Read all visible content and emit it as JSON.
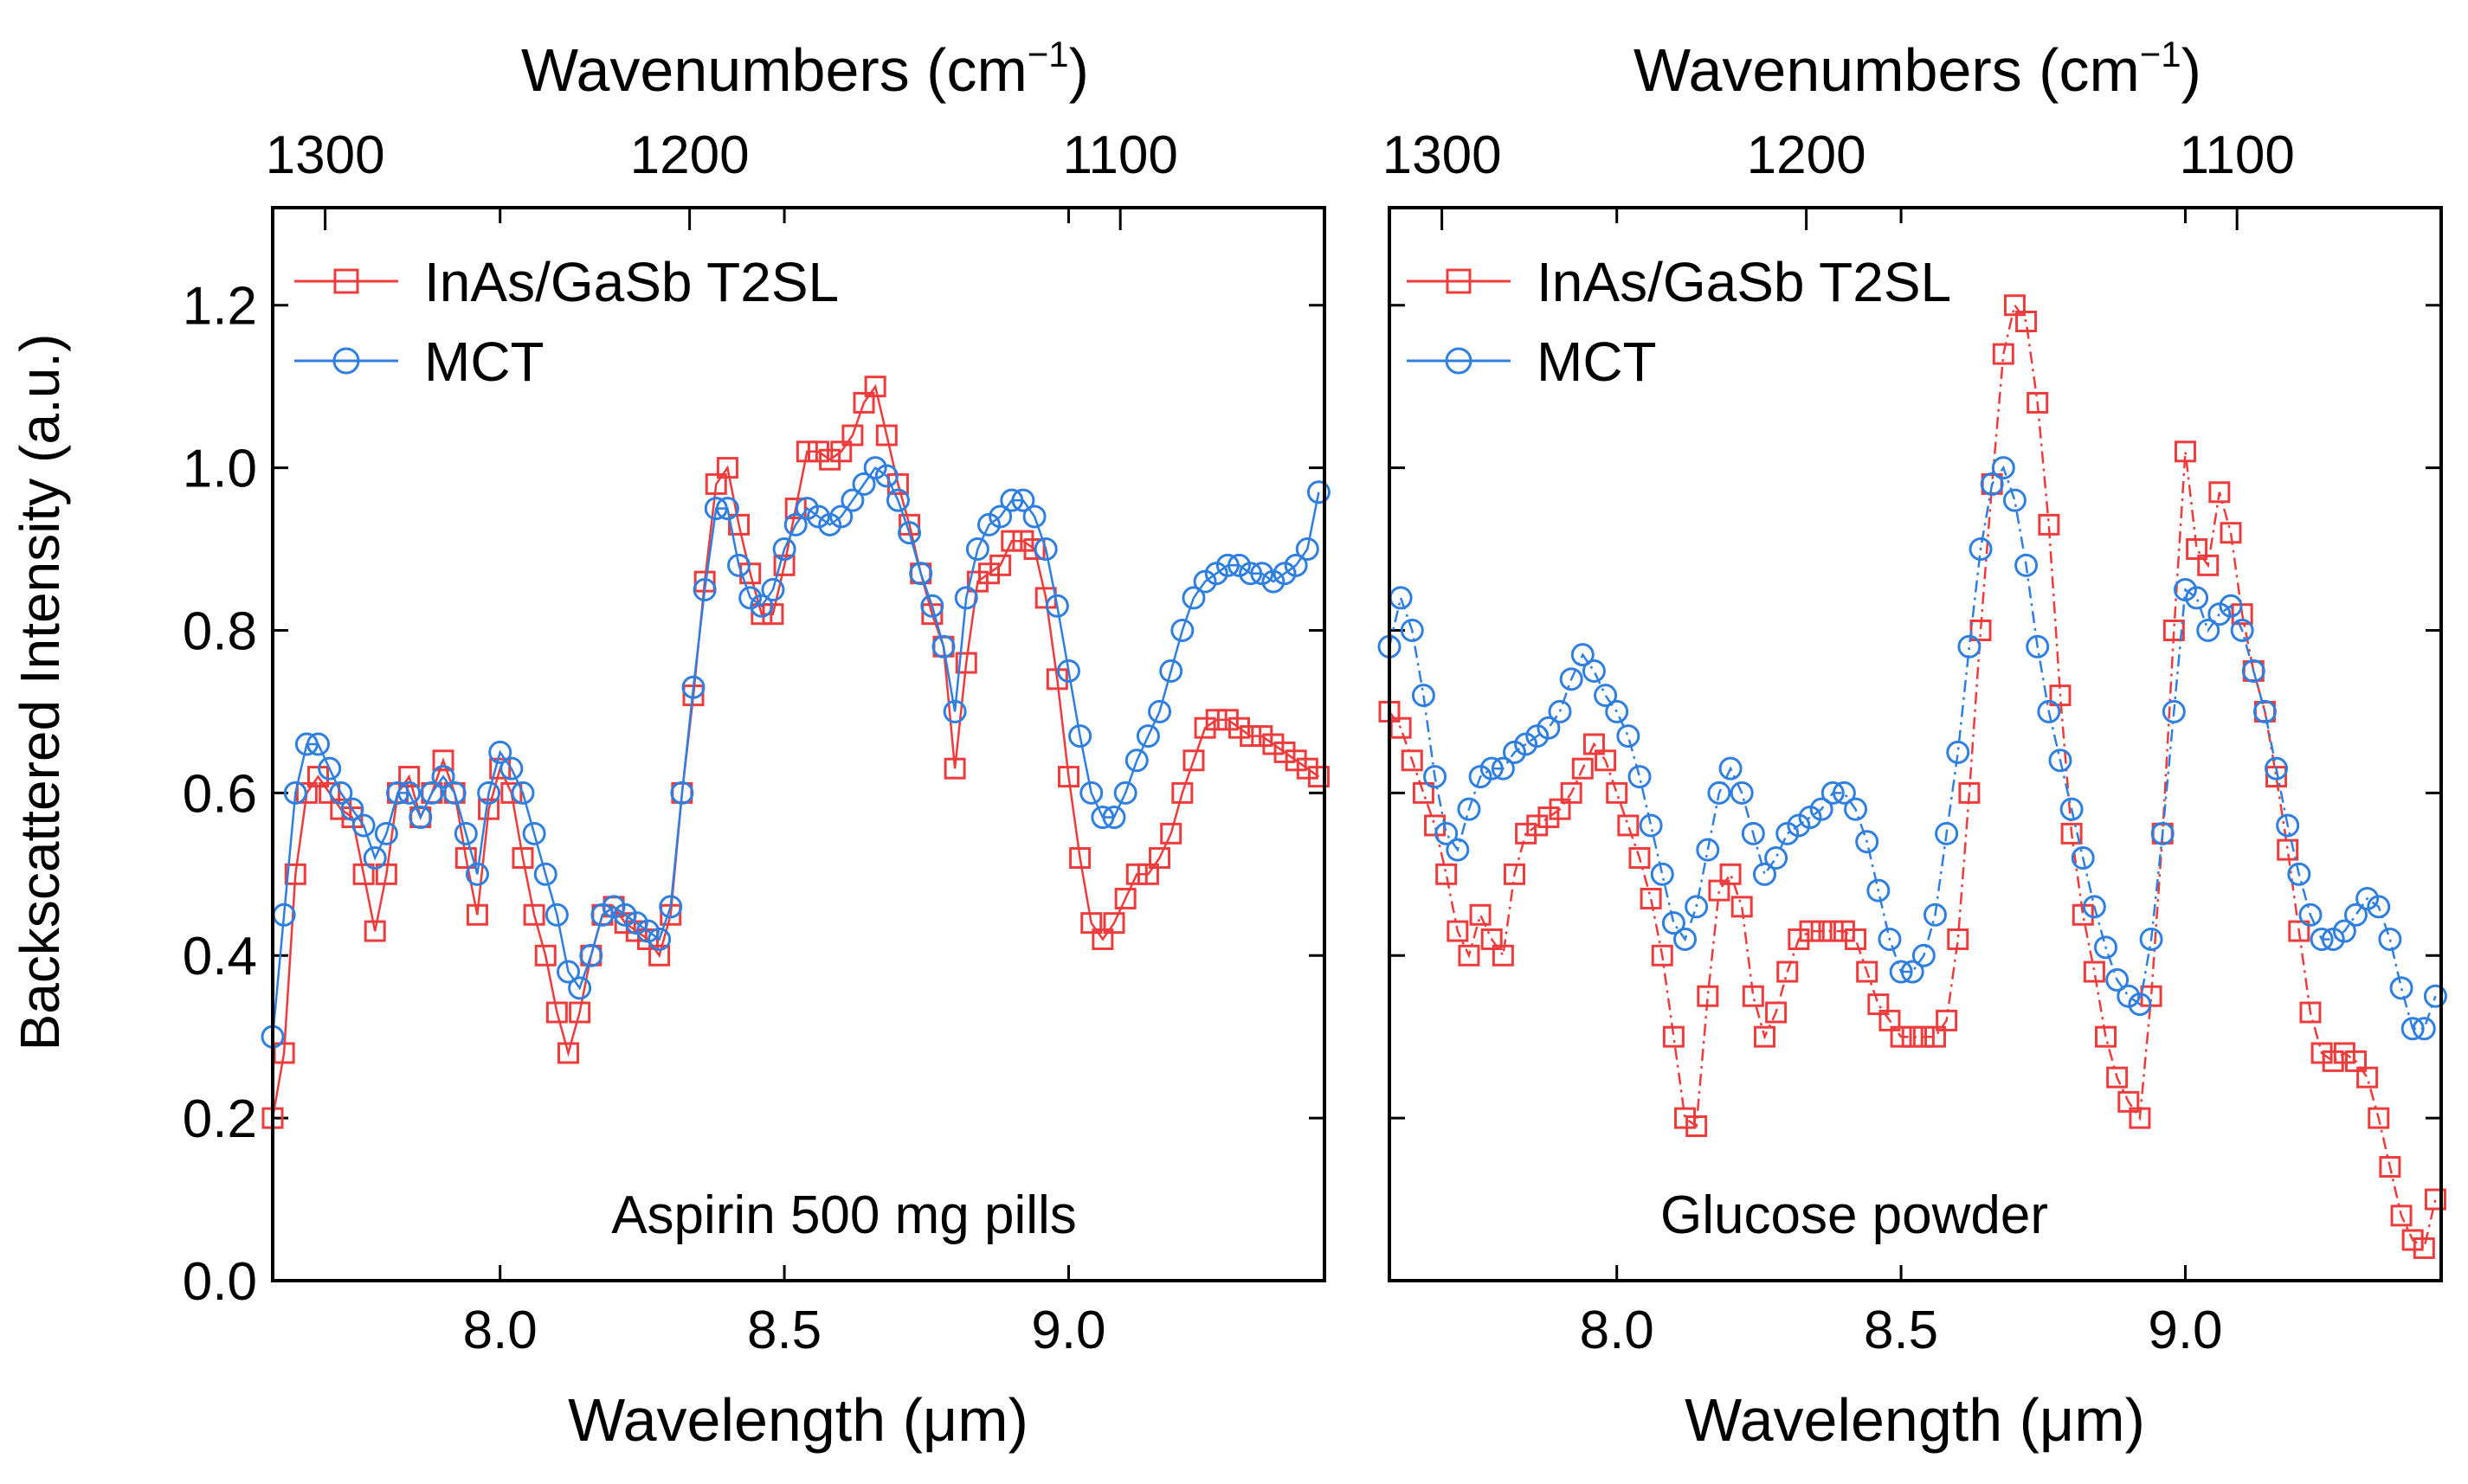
{
  "figure": {
    "ylabel": "Backscattered Intensity (a.u.)",
    "xlabel": "Wavelength (μm)",
    "top_axis_label": "Wavenumbers (cm",
    "top_axis_label_sup": "−1",
    "top_axis_label_close": ")"
  },
  "colors": {
    "t2sl": "#ee3b3b",
    "mct": "#2f7fe0"
  },
  "chart_data": [
    {
      "type": "scatter",
      "annotation": "Aspirin 500 mg pills",
      "xlabel": "Wavelength (μm)",
      "ylabel": "Backscattered Intensity (a.u.)",
      "top_xlabel": "Wavenumbers (cm−1)",
      "xlim": [
        7.6,
        9.45
      ],
      "ylim": [
        0,
        1.32
      ],
      "xticks": [
        8.0,
        8.5,
        9.0
      ],
      "xtick_labels": [
        "8.0",
        "8.5",
        "9.0"
      ],
      "yticks": [
        0.0,
        0.2,
        0.4,
        0.6,
        0.8,
        1.0,
        1.2
      ],
      "ytick_labels": [
        "0.0",
        "0.2",
        "0.4",
        "0.6",
        "0.8",
        "1.0",
        "1.2"
      ],
      "top_ticks": [
        1300,
        1200,
        1100
      ],
      "top_tick_labels": [
        "1300",
        "1200",
        "1100"
      ],
      "legend": "top-left",
      "series": [
        {
          "name": "InAs/GaSb T2SL",
          "marker": "square",
          "color": "#ee3b3b",
          "line": "solid",
          "x": [
            7.6,
            7.62,
            7.64,
            7.66,
            7.68,
            7.7,
            7.72,
            7.74,
            7.76,
            7.78,
            7.8,
            7.82,
            7.84,
            7.86,
            7.88,
            7.9,
            7.92,
            7.94,
            7.96,
            7.98,
            8.0,
            8.02,
            8.04,
            8.06,
            8.08,
            8.1,
            8.12,
            8.14,
            8.16,
            8.18,
            8.2,
            8.22,
            8.24,
            8.26,
            8.28,
            8.3,
            8.32,
            8.34,
            8.36,
            8.38,
            8.4,
            8.42,
            8.44,
            8.46,
            8.48,
            8.5,
            8.52,
            8.54,
            8.56,
            8.58,
            8.6,
            8.62,
            8.64,
            8.66,
            8.68,
            8.7,
            8.72,
            8.74,
            8.76,
            8.78,
            8.8,
            8.82,
            8.84,
            8.86,
            8.88,
            8.9,
            8.92,
            8.94,
            8.96,
            8.98,
            9.0,
            9.02,
            9.04,
            9.06,
            9.08,
            9.1,
            9.12,
            9.14,
            9.16,
            9.18,
            9.2,
            9.22,
            9.24,
            9.26,
            9.28,
            9.3,
            9.32,
            9.34,
            9.36,
            9.38,
            9.4,
            9.42,
            9.44
          ],
          "y": [
            0.2,
            0.28,
            0.5,
            0.6,
            0.62,
            0.6,
            0.58,
            0.57,
            0.5,
            0.43,
            0.5,
            0.6,
            0.62,
            0.57,
            0.6,
            0.64,
            0.6,
            0.52,
            0.45,
            0.58,
            0.63,
            0.6,
            0.52,
            0.45,
            0.4,
            0.33,
            0.28,
            0.33,
            0.4,
            0.45,
            0.46,
            0.44,
            0.43,
            0.42,
            0.4,
            0.45,
            0.6,
            0.72,
            0.86,
            0.98,
            1.0,
            0.93,
            0.87,
            0.82,
            0.82,
            0.88,
            0.95,
            1.02,
            1.02,
            1.01,
            1.02,
            1.04,
            1.08,
            1.1,
            1.04,
            0.98,
            0.93,
            0.87,
            0.82,
            0.78,
            0.63,
            0.76,
            0.86,
            0.87,
            0.88,
            0.91,
            0.91,
            0.9,
            0.84,
            0.74,
            0.62,
            0.52,
            0.44,
            0.42,
            0.44,
            0.47,
            0.5,
            0.5,
            0.52,
            0.55,
            0.6,
            0.64,
            0.68,
            0.69,
            0.69,
            0.68,
            0.67,
            0.67,
            0.66,
            0.65,
            0.64,
            0.63,
            0.62
          ]
        },
        {
          "name": "MCT",
          "marker": "circle",
          "color": "#2f7fe0",
          "line": "solid",
          "x": [
            7.6,
            7.62,
            7.64,
            7.66,
            7.68,
            7.7,
            7.72,
            7.74,
            7.76,
            7.78,
            7.8,
            7.82,
            7.84,
            7.86,
            7.88,
            7.9,
            7.92,
            7.94,
            7.96,
            7.98,
            8.0,
            8.02,
            8.04,
            8.06,
            8.08,
            8.1,
            8.12,
            8.14,
            8.16,
            8.18,
            8.2,
            8.22,
            8.24,
            8.26,
            8.28,
            8.3,
            8.32,
            8.34,
            8.36,
            8.38,
            8.4,
            8.42,
            8.44,
            8.46,
            8.48,
            8.5,
            8.52,
            8.54,
            8.56,
            8.58,
            8.6,
            8.62,
            8.64,
            8.66,
            8.68,
            8.7,
            8.72,
            8.74,
            8.76,
            8.78,
            8.8,
            8.82,
            8.84,
            8.86,
            8.88,
            8.9,
            8.92,
            8.94,
            8.96,
            8.98,
            9.0,
            9.02,
            9.04,
            9.06,
            9.08,
            9.1,
            9.12,
            9.14,
            9.16,
            9.18,
            9.2,
            9.22,
            9.24,
            9.26,
            9.28,
            9.3,
            9.32,
            9.34,
            9.36,
            9.38,
            9.4,
            9.42,
            9.44
          ],
          "y": [
            0.3,
            0.45,
            0.6,
            0.66,
            0.66,
            0.63,
            0.6,
            0.58,
            0.56,
            0.52,
            0.55,
            0.6,
            0.6,
            0.57,
            0.6,
            0.62,
            0.6,
            0.55,
            0.5,
            0.6,
            0.65,
            0.63,
            0.6,
            0.55,
            0.5,
            0.45,
            0.38,
            0.36,
            0.4,
            0.45,
            0.46,
            0.45,
            0.44,
            0.43,
            0.42,
            0.46,
            0.6,
            0.73,
            0.85,
            0.95,
            0.95,
            0.88,
            0.84,
            0.83,
            0.85,
            0.9,
            0.93,
            0.95,
            0.94,
            0.93,
            0.94,
            0.96,
            0.98,
            1.0,
            0.99,
            0.96,
            0.92,
            0.87,
            0.83,
            0.78,
            0.7,
            0.84,
            0.9,
            0.93,
            0.94,
            0.96,
            0.96,
            0.94,
            0.9,
            0.83,
            0.75,
            0.67,
            0.6,
            0.57,
            0.57,
            0.6,
            0.64,
            0.67,
            0.7,
            0.75,
            0.8,
            0.84,
            0.86,
            0.87,
            0.88,
            0.88,
            0.87,
            0.87,
            0.86,
            0.87,
            0.88,
            0.9,
            0.97
          ]
        }
      ]
    },
    {
      "type": "scatter",
      "annotation": "Glucose powder",
      "xlabel": "Wavelength (μm)",
      "top_xlabel": "Wavenumbers (cm−1)",
      "xlim": [
        7.6,
        9.45
      ],
      "ylim": [
        0,
        1.32
      ],
      "xticks": [
        8.0,
        8.5,
        9.0
      ],
      "xtick_labels": [
        "8.0",
        "8.5",
        "9.0"
      ],
      "yticks": [
        0.0,
        0.2,
        0.4,
        0.6,
        0.8,
        1.0,
        1.2
      ],
      "top_ticks": [
        1300,
        1200,
        1100
      ],
      "top_tick_labels": [
        "1300",
        "1200",
        "1100"
      ],
      "legend": "top-left",
      "series": [
        {
          "name": "InAs/GaSb T2SL",
          "marker": "square",
          "color": "#ee3b3b",
          "line": "dashdot",
          "x": [
            7.6,
            7.62,
            7.64,
            7.66,
            7.68,
            7.7,
            7.72,
            7.74,
            7.76,
            7.78,
            7.8,
            7.82,
            7.84,
            7.86,
            7.88,
            7.9,
            7.92,
            7.94,
            7.96,
            7.98,
            8.0,
            8.02,
            8.04,
            8.06,
            8.08,
            8.1,
            8.12,
            8.14,
            8.16,
            8.18,
            8.2,
            8.22,
            8.24,
            8.26,
            8.28,
            8.3,
            8.32,
            8.34,
            8.36,
            8.38,
            8.4,
            8.42,
            8.44,
            8.46,
            8.48,
            8.5,
            8.52,
            8.54,
            8.56,
            8.58,
            8.6,
            8.62,
            8.64,
            8.66,
            8.68,
            8.7,
            8.72,
            8.74,
            8.76,
            8.78,
            8.8,
            8.82,
            8.84,
            8.86,
            8.88,
            8.9,
            8.92,
            8.94,
            8.96,
            8.98,
            9.0,
            9.02,
            9.04,
            9.06,
            9.08,
            9.1,
            9.12,
            9.14,
            9.16,
            9.18,
            9.2,
            9.22,
            9.24,
            9.26,
            9.28,
            9.3,
            9.32,
            9.34,
            9.36,
            9.38,
            9.4,
            9.42,
            9.44
          ],
          "y": [
            0.7,
            0.68,
            0.64,
            0.6,
            0.56,
            0.5,
            0.43,
            0.4,
            0.45,
            0.42,
            0.4,
            0.5,
            0.55,
            0.56,
            0.57,
            0.58,
            0.6,
            0.63,
            0.66,
            0.64,
            0.6,
            0.56,
            0.52,
            0.47,
            0.4,
            0.3,
            0.2,
            0.19,
            0.35,
            0.48,
            0.5,
            0.46,
            0.35,
            0.3,
            0.33,
            0.38,
            0.42,
            0.43,
            0.43,
            0.43,
            0.43,
            0.42,
            0.38,
            0.34,
            0.32,
            0.3,
            0.3,
            0.3,
            0.3,
            0.32,
            0.42,
            0.6,
            0.8,
            0.98,
            1.14,
            1.2,
            1.18,
            1.08,
            0.93,
            0.72,
            0.55,
            0.45,
            0.38,
            0.3,
            0.25,
            0.22,
            0.2,
            0.35,
            0.55,
            0.8,
            1.02,
            0.9,
            0.88,
            0.97,
            0.92,
            0.82,
            0.75,
            0.7,
            0.62,
            0.53,
            0.43,
            0.33,
            0.28,
            0.27,
            0.28,
            0.27,
            0.25,
            0.2,
            0.14,
            0.08,
            0.05,
            0.04,
            0.1
          ]
        },
        {
          "name": "MCT",
          "marker": "circle",
          "color": "#2f7fe0",
          "line": "dashdot",
          "x": [
            7.6,
            7.62,
            7.64,
            7.66,
            7.68,
            7.7,
            7.72,
            7.74,
            7.76,
            7.78,
            7.8,
            7.82,
            7.84,
            7.86,
            7.88,
            7.9,
            7.92,
            7.94,
            7.96,
            7.98,
            8.0,
            8.02,
            8.04,
            8.06,
            8.08,
            8.1,
            8.12,
            8.14,
            8.16,
            8.18,
            8.2,
            8.22,
            8.24,
            8.26,
            8.28,
            8.3,
            8.32,
            8.34,
            8.36,
            8.38,
            8.4,
            8.42,
            8.44,
            8.46,
            8.48,
            8.5,
            8.52,
            8.54,
            8.56,
            8.58,
            8.6,
            8.62,
            8.64,
            8.66,
            8.68,
            8.7,
            8.72,
            8.74,
            8.76,
            8.78,
            8.8,
            8.82,
            8.84,
            8.86,
            8.88,
            8.9,
            8.92,
            8.94,
            8.96,
            8.98,
            9.0,
            9.02,
            9.04,
            9.06,
            9.08,
            9.1,
            9.12,
            9.14,
            9.16,
            9.18,
            9.2,
            9.22,
            9.24,
            9.26,
            9.28,
            9.3,
            9.32,
            9.34,
            9.36,
            9.38,
            9.4,
            9.42,
            9.44
          ],
          "y": [
            0.78,
            0.84,
            0.8,
            0.72,
            0.62,
            0.55,
            0.53,
            0.58,
            0.62,
            0.63,
            0.63,
            0.65,
            0.66,
            0.67,
            0.68,
            0.7,
            0.74,
            0.77,
            0.75,
            0.72,
            0.7,
            0.67,
            0.62,
            0.56,
            0.5,
            0.44,
            0.42,
            0.46,
            0.53,
            0.6,
            0.63,
            0.6,
            0.55,
            0.5,
            0.52,
            0.55,
            0.56,
            0.57,
            0.58,
            0.6,
            0.6,
            0.58,
            0.54,
            0.48,
            0.42,
            0.38,
            0.38,
            0.4,
            0.45,
            0.55,
            0.65,
            0.78,
            0.9,
            0.98,
            1.0,
            0.96,
            0.88,
            0.78,
            0.7,
            0.64,
            0.58,
            0.52,
            0.46,
            0.41,
            0.37,
            0.35,
            0.34,
            0.42,
            0.55,
            0.7,
            0.85,
            0.84,
            0.8,
            0.82,
            0.83,
            0.8,
            0.75,
            0.7,
            0.63,
            0.56,
            0.5,
            0.45,
            0.42,
            0.42,
            0.43,
            0.45,
            0.47,
            0.46,
            0.42,
            0.36,
            0.31,
            0.31,
            0.35
          ]
        }
      ]
    }
  ]
}
